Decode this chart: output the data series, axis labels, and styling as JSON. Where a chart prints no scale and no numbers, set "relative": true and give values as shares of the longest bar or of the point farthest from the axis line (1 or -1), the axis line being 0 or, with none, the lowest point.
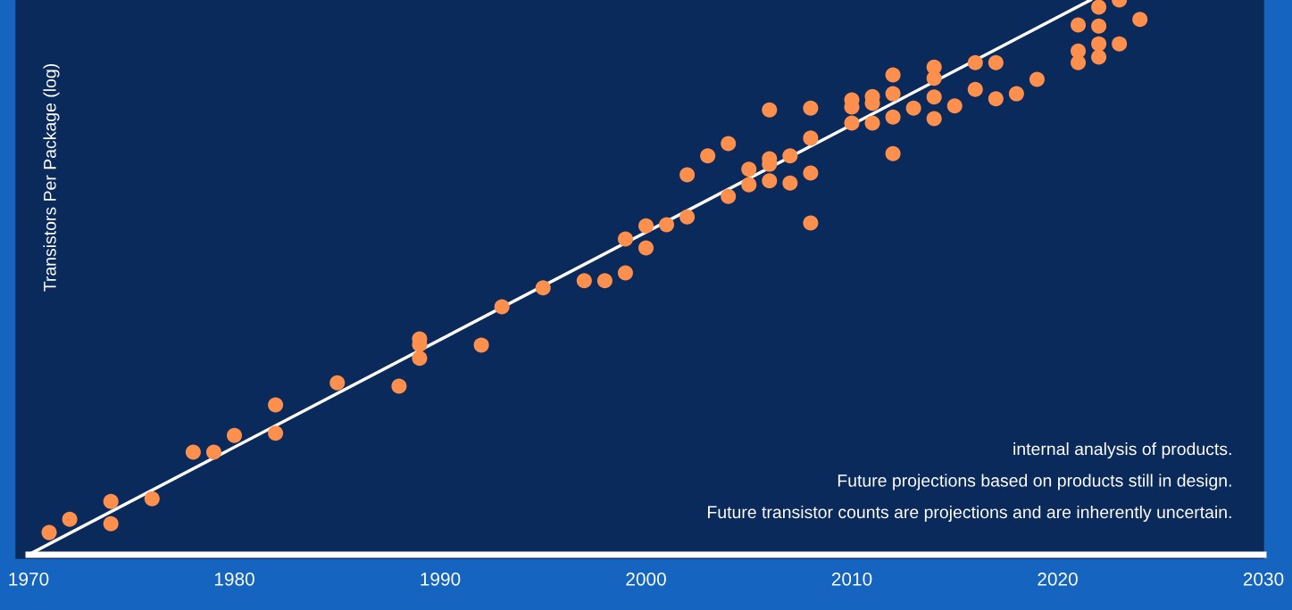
{
  "chart_data": {
    "type": "scatter",
    "ylabel": "Transistors Per Package (log)",
    "relative": true,
    "xlim": [
      1970,
      2030
    ],
    "xticks": [
      1970,
      1980,
      1990,
      2000,
      2010,
      2020,
      2030
    ],
    "tick_labels": "x",
    "grid": false,
    "annotations": [
      "internal analysis of products.",
      "Future projections based on products still in design.",
      "Future transistor counts are projections and are inherently uncertain."
    ],
    "series": [
      {
        "color": "#ff8f4d",
        "marker": "circle",
        "x": [
          1971,
          1972,
          1974,
          1974,
          1976,
          1978,
          1979,
          1980,
          1982,
          1982,
          1985,
          1988,
          1989,
          1989,
          1989,
          1992,
          1993,
          1995,
          1997,
          1998,
          1999,
          1999,
          2000,
          2000,
          2001,
          2002,
          2002,
          2003,
          2004,
          2004,
          2005,
          2005,
          2006,
          2006,
          2006,
          2006,
          2007,
          2007,
          2008,
          2008,
          2008,
          2008,
          2010,
          2010,
          2010,
          2011,
          2011,
          2011,
          2012,
          2012,
          2012,
          2012,
          2013,
          2014,
          2014,
          2014,
          2014,
          2015,
          2016,
          2016,
          2017,
          2017,
          2018,
          2019,
          2021,
          2021,
          2021,
          2022,
          2022,
          2022,
          2022,
          2023,
          2023,
          2024
        ],
        "values": [
          0.04,
          0.064,
          0.096,
          0.056,
          0.101,
          0.185,
          0.185,
          0.215,
          0.27,
          0.219,
          0.31,
          0.304,
          0.389,
          0.379,
          0.354,
          0.378,
          0.447,
          0.481,
          0.494,
          0.494,
          0.569,
          0.508,
          0.553,
          0.593,
          0.595,
          0.685,
          0.609,
          0.719,
          0.646,
          0.741,
          0.695,
          0.667,
          0.704,
          0.802,
          0.714,
          0.674,
          0.719,
          0.67,
          0.805,
          0.751,
          0.688,
          0.598,
          0.807,
          0.82,
          0.778,
          0.826,
          0.778,
          0.814,
          0.831,
          0.789,
          0.865,
          0.723,
          0.805,
          0.859,
          0.879,
          0.825,
          0.786,
          0.809,
          0.887,
          0.839,
          0.887,
          0.822,
          0.831,
          0.857,
          0.955,
          0.908,
          0.887,
          0.987,
          0.953,
          0.921,
          0.897,
          1,
          0.921,
          0.965
        ]
      },
      {
        "type": "line",
        "marker": "none",
        "color": "#ffffff",
        "x": [
          1970,
          2021.6
        ],
        "values": [
          0,
          1
        ]
      }
    ]
  }
}
